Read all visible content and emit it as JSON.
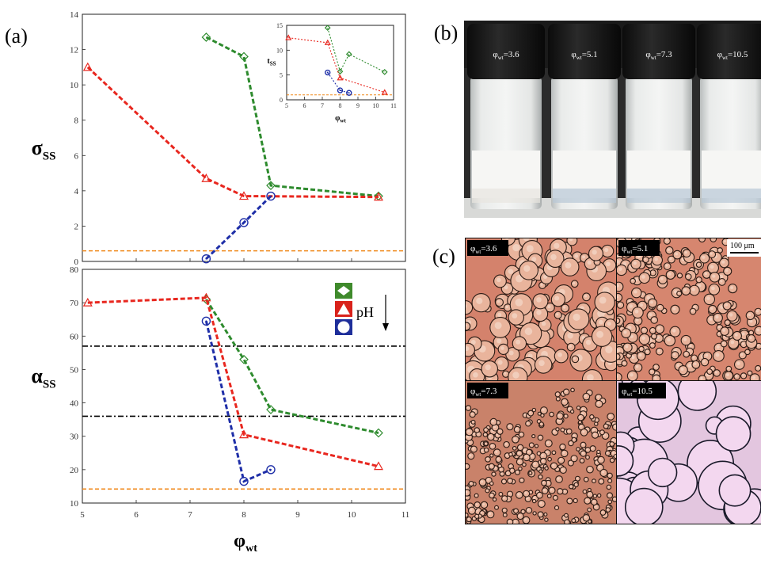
{
  "panel_labels": {
    "a": "(a)",
    "b": "(b)",
    "c": "(c)"
  },
  "chart_data": [
    {
      "name": "sigma-plot",
      "type": "line",
      "xlim": [
        5,
        11
      ],
      "ylim": [
        0,
        14
      ],
      "ylabel": "σ",
      "ylabel_sub": "SS",
      "yticks": [
        "0",
        "2",
        "4",
        "6",
        "8",
        "10",
        "12",
        "14"
      ],
      "series": [
        {
          "color": "#2e8b2e",
          "marker": "diamond",
          "x": [
            7.3,
            8.0,
            8.5,
            10.5
          ],
          "y": [
            12.7,
            11.6,
            4.3,
            3.7
          ]
        },
        {
          "color": "#e8271f",
          "marker": "triangle",
          "x": [
            5.1,
            7.3,
            8.0,
            10.5
          ],
          "y": [
            11.0,
            4.7,
            3.7,
            3.65
          ]
        },
        {
          "color": "#1f2fa8",
          "marker": "circle",
          "x": [
            7.3,
            8.0,
            8.5
          ],
          "y": [
            0.15,
            2.2,
            3.7
          ]
        }
      ],
      "hlines": [
        {
          "y": 0.6,
          "color": "#f08a1c",
          "style": "dashed"
        }
      ]
    },
    {
      "name": "tss-inset",
      "type": "line",
      "xlim": [
        5,
        11
      ],
      "ylim": [
        0,
        15
      ],
      "ylabel": "t",
      "ylabel_sub": "SS",
      "xlabel": "φ",
      "xlabel_sub": "wt",
      "xticks": [
        "5",
        "6",
        "7",
        "8",
        "9",
        "10",
        "11"
      ],
      "yticks": [
        "0",
        "5",
        "10",
        "15"
      ],
      "series": [
        {
          "color": "#2e8b2e",
          "marker": "diamond",
          "x": [
            7.3,
            8.0,
            8.5,
            10.5
          ],
          "y": [
            14.5,
            5.7,
            9.2,
            5.6
          ]
        },
        {
          "color": "#e8271f",
          "marker": "triangle",
          "x": [
            5.1,
            7.3,
            8.0,
            10.5
          ],
          "y": [
            12.5,
            11.5,
            4.4,
            1.5
          ]
        },
        {
          "color": "#1f2fa8",
          "marker": "circle",
          "x": [
            7.3,
            8.0,
            8.5
          ],
          "y": [
            5.5,
            1.9,
            1.4
          ]
        }
      ],
      "hlines": [
        {
          "y": 1.0,
          "color": "#f08a1c",
          "style": "dashed"
        }
      ]
    },
    {
      "name": "alpha-plot",
      "type": "line",
      "xlim": [
        5,
        11
      ],
      "ylim": [
        10,
        80
      ],
      "ylabel": "α",
      "ylabel_sub": "SS",
      "xlabel": "φ",
      "xlabel_sub": "wt",
      "xticks": [
        "5",
        "6",
        "7",
        "8",
        "9",
        "10",
        "11"
      ],
      "yticks": [
        "10",
        "20",
        "30",
        "40",
        "50",
        "60",
        "70",
        "80"
      ],
      "series": [
        {
          "color": "#2e8b2e",
          "marker": "diamond",
          "x": [
            7.3,
            8.0,
            8.5,
            10.5
          ],
          "y": [
            71,
            53,
            38,
            31
          ]
        },
        {
          "color": "#e8271f",
          "marker": "triangle",
          "x": [
            5.1,
            7.3,
            8.0,
            10.5
          ],
          "y": [
            70,
            71.5,
            30.5,
            21
          ]
        },
        {
          "color": "#1f2fa8",
          "marker": "circle",
          "x": [
            7.3,
            8.0,
            8.5
          ],
          "y": [
            64.5,
            16.5,
            20
          ]
        }
      ],
      "hlines": [
        {
          "y": 57,
          "color": "#000000",
          "style": "dashdot"
        },
        {
          "y": 36,
          "color": "#000000",
          "style": "dashdot"
        },
        {
          "y": 14.2,
          "color": "#f08a1c",
          "style": "dashed"
        }
      ],
      "legend": {
        "label": "pH",
        "placement": "top-right"
      }
    }
  ],
  "vials": [
    {
      "phi": "φ",
      "sub": "wt",
      "value": "=3.6"
    },
    {
      "phi": "φ",
      "sub": "wt",
      "value": "=5.1"
    },
    {
      "phi": "φ",
      "sub": "wt",
      "value": "=7.3"
    },
    {
      "phi": "φ",
      "sub": "wt",
      "value": "=10.5"
    }
  ],
  "micrographs": [
    {
      "phi": "φ",
      "sub": "wt",
      "value": "=3.6",
      "bg": "#d4826c"
    },
    {
      "phi": "φ",
      "sub": "wt",
      "value": "=5.1",
      "bg": "#d6866f"
    },
    {
      "phi": "φ",
      "sub": "wt",
      "value": "=7.3",
      "bg": "#c9826a"
    },
    {
      "phi": "φ",
      "sub": "wt",
      "value": "=10.5",
      "bg": "#e3c6df"
    }
  ],
  "scale_bar": "100 μm"
}
